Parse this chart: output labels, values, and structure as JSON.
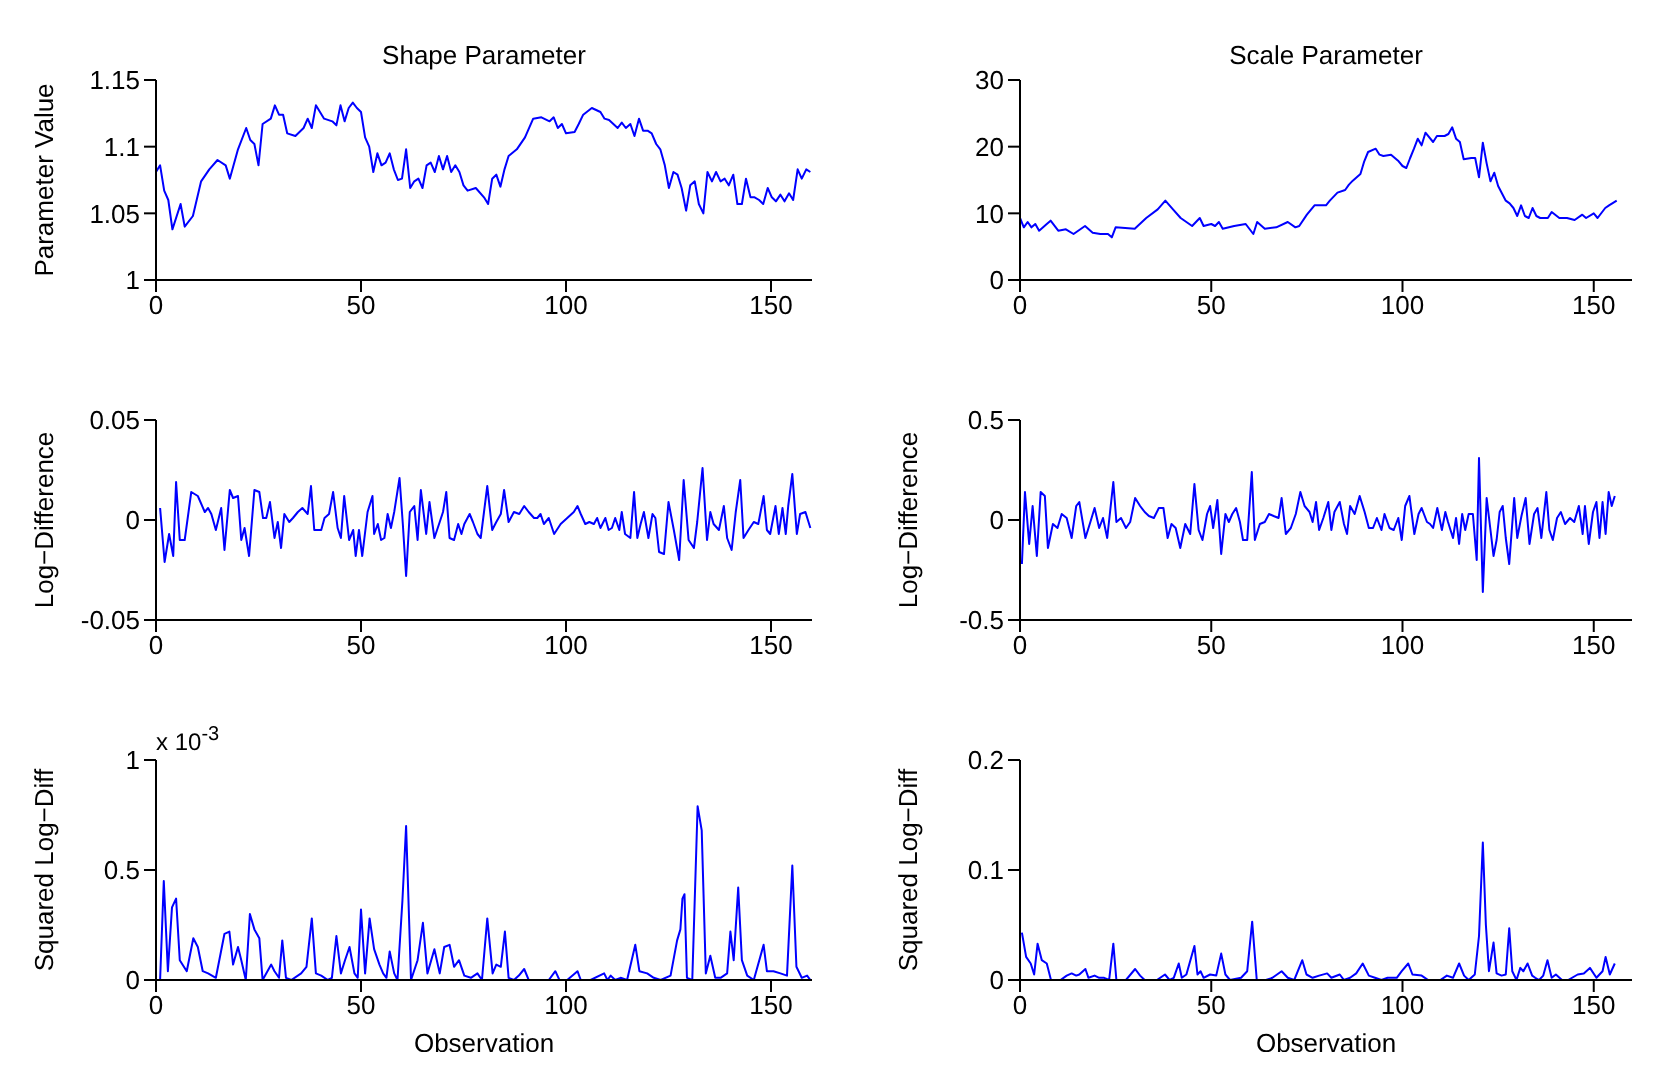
{
  "chart_data": [
    {
      "type": "line",
      "title": "Shape Parameter",
      "ylabel": "Parameter Value",
      "xlim": [
        0,
        160
      ],
      "xticks": [
        0,
        50,
        100,
        150
      ],
      "ylim": [
        1,
        1.15
      ],
      "yticks": [
        1,
        1.05,
        1.1,
        1.15
      ],
      "series": [
        {
          "color": "#0000ff",
          "x": [
            0,
            1,
            2,
            3,
            4,
            6,
            7,
            9,
            11,
            13,
            15,
            17,
            18,
            20,
            22,
            23,
            24,
            25,
            26,
            28,
            29,
            30,
            31,
            32,
            34,
            36,
            37,
            38,
            39,
            41,
            43,
            44,
            45,
            46,
            47,
            48,
            49,
            50,
            51,
            52,
            53,
            54,
            55,
            56,
            57,
            58,
            59,
            60,
            61,
            62,
            63,
            64,
            65,
            66,
            67,
            68,
            69,
            70,
            71,
            72,
            73,
            74,
            75,
            76,
            78,
            80,
            81,
            82,
            83,
            84,
            85,
            86,
            88,
            90,
            92,
            94,
            96,
            97,
            98,
            99,
            100,
            102.1,
            103.1,
            104.2,
            106.3,
            108.4,
            109.4,
            110.5,
            112.6,
            113.6,
            114.6,
            115.7,
            116.7,
            117.8,
            118.8,
            119.9,
            120.9,
            122.0,
            123.0,
            124.1,
            125.1,
            126.2,
            127.2,
            128.2,
            129.3,
            130.3,
            131.4,
            132.4,
            133.5,
            134.5,
            135.6,
            136.6,
            137.7,
            138.7,
            139.7,
            140.8,
            141.8,
            142.9,
            143.9,
            145.0,
            146.0,
            147.1,
            148.1,
            149.2,
            150.2,
            151.2,
            152.3,
            153.3,
            154.4,
            155.4,
            156.5,
            157.5,
            158.6,
            159.6
          ],
          "values": [
            1.081,
            1.086,
            1.067,
            1.06,
            1.038,
            1.057,
            1.04,
            1.048,
            1.074,
            1.083,
            1.09,
            1.086,
            1.076,
            1.098,
            1.114,
            1.105,
            1.102,
            1.086,
            1.117,
            1.121,
            1.131,
            1.124,
            1.124,
            1.11,
            1.108,
            1.114,
            1.121,
            1.114,
            1.131,
            1.121,
            1.119,
            1.116,
            1.131,
            1.119,
            1.129,
            1.133,
            1.129,
            1.126,
            1.107,
            1.1,
            1.081,
            1.095,
            1.086,
            1.088,
            1.095,
            1.083,
            1.075,
            1.076,
            1.098,
            1.069,
            1.074,
            1.076,
            1.069,
            1.086,
            1.088,
            1.081,
            1.093,
            1.083,
            1.093,
            1.081,
            1.086,
            1.081,
            1.071,
            1.067,
            1.069,
            1.062,
            1.057,
            1.076,
            1.079,
            1.07,
            1.083,
            1.093,
            1.098,
            1.107,
            1.121,
            1.122,
            1.119,
            1.122,
            1.114,
            1.117,
            1.11,
            1.111,
            1.117,
            1.124,
            1.129,
            1.126,
            1.121,
            1.12,
            1.114,
            1.118,
            1.114,
            1.117,
            1.108,
            1.121,
            1.112,
            1.112,
            1.11,
            1.102,
            1.098,
            1.086,
            1.069,
            1.081,
            1.079,
            1.069,
            1.052,
            1.071,
            1.074,
            1.057,
            1.05,
            1.081,
            1.074,
            1.081,
            1.074,
            1.076,
            1.071,
            1.079,
            1.057,
            1.057,
            1.076,
            1.062,
            1.062,
            1.06,
            1.057,
            1.069,
            1.062,
            1.059,
            1.064,
            1.059,
            1.065,
            1.06,
            1.083,
            1.076,
            1.083,
            1.081
          ]
        }
      ]
    },
    {
      "type": "line",
      "title": "Scale Parameter",
      "xlim": [
        0,
        160
      ],
      "xticks": [
        0,
        50,
        100,
        150
      ],
      "ylim": [
        0,
        30
      ],
      "yticks": [
        0,
        10,
        20,
        30
      ],
      "series": [
        {
          "color": "#0000ff",
          "x": [
            0,
            1,
            2,
            3,
            4,
            5,
            7,
            8,
            10,
            12,
            14,
            17,
            19,
            21,
            23,
            24,
            25,
            30,
            33,
            36,
            38,
            40,
            42,
            45,
            47,
            48,
            50,
            51,
            52,
            53,
            56,
            59,
            61,
            62,
            64,
            67,
            70,
            72,
            73,
            75,
            77,
            80,
            81,
            83,
            85,
            86,
            87,
            89,
            90,
            91,
            93,
            94,
            95,
            97,
            99,
            100,
            101,
            102,
            103,
            104,
            105,
            106,
            108,
            109,
            111,
            112,
            113,
            114,
            115,
            116,
            118,
            119,
            120,
            121,
            122,
            123,
            124,
            125,
            127,
            128,
            129,
            130,
            131,
            132,
            133,
            134,
            135,
            136,
            138,
            139,
            141,
            143,
            145,
            147,
            148,
            150,
            151,
            153,
            154,
            156
          ],
          "values": [
            9.3,
            7.9,
            8.7,
            7.9,
            8.4,
            7.4,
            8.4,
            8.9,
            7.4,
            7.6,
            6.9,
            8.1,
            7.1,
            6.9,
            6.9,
            6.4,
            7.9,
            7.7,
            9.3,
            10.6,
            11.9,
            10.6,
            9.3,
            8.1,
            9.3,
            8.1,
            8.4,
            8.1,
            8.7,
            7.7,
            8.1,
            8.4,
            6.9,
            8.7,
            7.7,
            7.9,
            8.7,
            7.9,
            8.1,
            9.8,
            11.2,
            11.2,
            11.9,
            13.1,
            13.5,
            14.3,
            14.9,
            15.9,
            17.8,
            19.2,
            19.7,
            18.8,
            18.6,
            18.8,
            17.8,
            17.1,
            16.8,
            18.3,
            19.7,
            21.2,
            20.2,
            22.1,
            20.7,
            21.6,
            21.6,
            21.9,
            22.9,
            21.2,
            20.7,
            18.1,
            18.3,
            18.3,
            15.4,
            20.6,
            17.5,
            14.8,
            16.1,
            14.1,
            11.9,
            11.5,
            10.8,
            9.6,
            11.2,
            9.6,
            9.3,
            10.8,
            9.6,
            9.3,
            9.3,
            10.2,
            9.3,
            9.3,
            9.0,
            9.8,
            9.3,
            10.0,
            9.3,
            10.8,
            11.2,
            11.9
          ]
        }
      ]
    },
    {
      "type": "line",
      "ylabel": "Log−Difference",
      "xlim": [
        0,
        160
      ],
      "xticks": [
        0,
        50,
        100,
        150
      ],
      "ylim": [
        -0.05,
        0.05
      ],
      "yticks": [
        -0.05,
        0,
        0.05
      ],
      "series": [
        {
          "color": "#0000ff",
          "x": [
            1.0,
            2.1,
            3.2,
            4.2,
            4.9,
            5.8,
            7.0,
            8.6,
            10.2,
            11.9,
            12.7,
            13.5,
            14.6,
            15.9,
            16.7,
            18.0,
            18.8,
            20.0,
            20.8,
            21.6,
            22.7,
            24.0,
            25.2,
            26.1,
            26.9,
            27.8,
            28.9,
            29.7,
            30.5,
            31.3,
            32.5,
            33.4,
            34.6,
            35.7,
            37.0,
            37.8,
            38.6,
            40.3,
            41.1,
            42.2,
            43.2,
            44.3,
            45.1,
            45.9,
            47.1,
            48.1,
            48.7,
            49.5,
            50.3,
            51.6,
            52.8,
            53.2,
            54.1,
            54.9,
            55.7,
            56.5,
            57.3,
            58.1,
            59.4,
            60.2,
            61.0,
            61.9,
            63.0,
            63.8,
            64.6,
            65.9,
            66.7,
            67.9,
            69.2,
            70.0,
            70.8,
            71.6,
            72.7,
            73.7,
            74.5,
            75.2,
            76.5,
            77.3,
            78.4,
            79.2,
            80.0,
            80.8,
            82.0,
            83.0,
            84.1,
            84.9,
            86.0,
            87.3,
            88.6,
            89.8,
            90.9,
            92.2,
            93.0,
            93.8,
            94.6,
            95.8,
            97.1,
            98.7,
            100.3,
            101.9,
            102.8,
            103.6,
            104.7,
            105.7,
            106.8,
            107.6,
            108.4,
            109.6,
            110.4,
            111.2,
            112.0,
            113.0,
            113.6,
            114.4,
            115.7,
            116.6,
            117.4,
            118.2,
            119.0,
            120.1,
            121.1,
            121.8,
            122.7,
            123.9,
            125.0,
            126.3,
            127.6,
            128.7,
            129.9,
            131.2,
            132.0,
            133.3,
            134.4,
            135.2,
            136.0,
            137.3,
            138.5,
            139.3,
            140.4,
            141.4,
            142.5,
            143.3,
            144.5,
            145.8,
            146.9,
            148.2,
            149.0,
            149.8,
            151.1,
            151.9,
            152.8,
            153.6,
            154.2,
            155.2,
            156.3,
            157.1,
            158.4,
            159.6
          ],
          "values": [
            0.006,
            -0.021,
            -0.007,
            -0.018,
            0.019,
            -0.01,
            -0.01,
            0.014,
            0.012,
            0.004,
            0.006,
            0.003,
            -0.005,
            0.006,
            -0.015,
            0.015,
            0.011,
            0.012,
            -0.01,
            -0.004,
            -0.018,
            0.015,
            0.014,
            0.001,
            0.001,
            0.009,
            -0.009,
            -0.001,
            -0.014,
            0.003,
            -0.001,
            0.001,
            0.004,
            0.006,
            0.003,
            0.017,
            -0.005,
            -0.005,
            0.001,
            0.003,
            0.014,
            -0.004,
            -0.009,
            0.012,
            -0.01,
            -0.005,
            -0.018,
            -0.005,
            -0.018,
            0.004,
            0.012,
            -0.007,
            -0.002,
            -0.01,
            -0.009,
            0.003,
            -0.004,
            0.004,
            0.021,
            -0.002,
            -0.028,
            0.004,
            0.007,
            -0.01,
            0.015,
            -0.007,
            0.009,
            -0.009,
            -0.001,
            0.004,
            0.014,
            -0.009,
            -0.01,
            -0.002,
            -0.007,
            -0.002,
            0.003,
            -0.001,
            -0.007,
            -0.009,
            0.004,
            0.017,
            -0.005,
            -0.001,
            0.003,
            0.015,
            -0.001,
            0.004,
            0.003,
            0.007,
            0.004,
            0.001,
            0.001,
            0.003,
            -0.002,
            0.001,
            -0.007,
            -0.002,
            0.001,
            0.004,
            0.007,
            0.003,
            -0.002,
            -0.001,
            -0.002,
            0.001,
            -0.004,
            0.001,
            -0.005,
            -0.004,
            0.001,
            -0.005,
            0.004,
            -0.007,
            -0.009,
            0.014,
            -0.009,
            -0.002,
            0.004,
            -0.009,
            0.003,
            0.001,
            -0.016,
            -0.017,
            0.009,
            -0.005,
            -0.02,
            0.02,
            -0.01,
            -0.014,
            -0.001,
            0.026,
            -0.01,
            0.004,
            -0.002,
            -0.005,
            0.007,
            -0.009,
            -0.015,
            0.004,
            0.02,
            -0.009,
            -0.005,
            -0.001,
            -0.002,
            0.012,
            -0.005,
            -0.007,
            0.007,
            -0.007,
            0.006,
            -0.007,
            0.007,
            0.023,
            -0.007,
            0.003,
            0.004,
            -0.004
          ]
        }
      ]
    },
    {
      "type": "line",
      "ylabel": "Log−Difference",
      "xlim": [
        0,
        160
      ],
      "xticks": [
        0,
        50,
        100,
        150
      ],
      "ylim": [
        -0.5,
        0.5
      ],
      "yticks": [
        -0.5,
        0,
        0.5
      ],
      "series": [
        {
          "color": "#0000ff",
          "x": [
            0.5,
            1.3,
            2.4,
            3.3,
            4.4,
            5.4,
            6.5,
            7.3,
            8.6,
            9.8,
            10.9,
            12.2,
            13.5,
            14.7,
            15.5,
            17.1,
            18.4,
            19.5,
            20.7,
            21.7,
            22.8,
            24.4,
            25.2,
            26.4,
            27.7,
            28.8,
            30.1,
            31.4,
            32.6,
            33.7,
            35.0,
            36.3,
            37.5,
            38.6,
            39.6,
            40.7,
            41.9,
            43.2,
            44.5,
            45.6,
            46.7,
            47.7,
            48.9,
            49.7,
            50.5,
            51.6,
            52.6,
            53.7,
            54.6,
            55.5,
            56.5,
            57.5,
            58.3,
            59.4,
            60.6,
            61.4,
            62.7,
            64.0,
            65.1,
            66.3,
            67.6,
            68.4,
            69.5,
            70.8,
            72.1,
            73.3,
            74.4,
            75.7,
            76.5,
            77.4,
            78.2,
            79.3,
            80.6,
            81.4,
            82.2,
            83.6,
            84.7,
            85.5,
            86.3,
            87.5,
            88.8,
            90.1,
            91.2,
            92.3,
            93.3,
            94.5,
            95.3,
            96.6,
            97.7,
            98.9,
            99.8,
            100.7,
            101.8,
            103.1,
            104.2,
            105.0,
            106.4,
            107.2,
            108.0,
            109.1,
            110.3,
            111.2,
            111.9,
            113.2,
            114.0,
            114.8,
            115.6,
            116.4,
            117.3,
            118.4,
            119.4,
            120.0,
            121.0,
            122.0,
            123.0,
            123.8,
            124.6,
            125.4,
            126.2,
            127.0,
            127.9,
            129.2,
            130.0,
            131.1,
            132.2,
            133.2,
            134.4,
            135.3,
            136.3,
            137.6,
            138.4,
            139.3,
            140.4,
            141.4,
            142.5,
            143.8,
            144.9,
            146.1,
            147.1,
            147.7,
            148.7,
            149.8,
            150.7,
            151.5,
            152.3,
            153.1,
            153.9,
            154.7,
            155.5
          ],
          "values": [
            -0.22,
            0.14,
            -0.12,
            0.07,
            -0.18,
            0.14,
            0.12,
            -0.14,
            -0.02,
            -0.04,
            0.03,
            0.01,
            -0.09,
            0.07,
            0.09,
            -0.09,
            -0.01,
            0.06,
            -0.04,
            0.01,
            -0.09,
            0.19,
            -0.01,
            0.01,
            -0.04,
            -0.01,
            0.11,
            0.07,
            0.04,
            0.02,
            0.01,
            0.06,
            0.06,
            -0.09,
            -0.02,
            -0.04,
            -0.14,
            -0.02,
            -0.07,
            0.18,
            -0.05,
            -0.1,
            0.03,
            0.07,
            -0.04,
            0.1,
            -0.17,
            0.03,
            -0.01,
            0.03,
            0.06,
            -0.01,
            -0.1,
            -0.1,
            0.24,
            -0.1,
            -0.02,
            -0.01,
            0.03,
            0.02,
            0.01,
            0.11,
            -0.07,
            -0.04,
            0.03,
            0.14,
            0.07,
            0.04,
            -0.01,
            0.09,
            -0.05,
            0.01,
            0.09,
            -0.05,
            0.04,
            0.09,
            -0.02,
            -0.07,
            0.07,
            0.03,
            0.12,
            0.04,
            -0.04,
            -0.04,
            0.01,
            -0.05,
            0.03,
            -0.04,
            -0.05,
            0.01,
            -0.1,
            0.07,
            0.12,
            -0.07,
            0.03,
            0.06,
            -0.01,
            -0.02,
            -0.04,
            0.06,
            -0.05,
            0.04,
            -0.01,
            -0.09,
            0.01,
            -0.12,
            0.03,
            -0.05,
            0.03,
            0.03,
            -0.2,
            0.31,
            -0.36,
            0.11,
            -0.05,
            -0.18,
            -0.1,
            0.04,
            0.07,
            -0.09,
            -0.22,
            0.11,
            -0.09,
            0.02,
            0.11,
            -0.12,
            0.03,
            0.06,
            -0.09,
            0.14,
            -0.05,
            -0.1,
            0.01,
            0.04,
            -0.02,
            0.01,
            -0.01,
            0.07,
            -0.07,
            0.07,
            -0.12,
            0.04,
            0.09,
            -0.09,
            0.09,
            -0.07,
            0.14,
            0.07,
            0.12
          ]
        }
      ]
    },
    {
      "type": "line",
      "ylabel": "Squared Log−Diff",
      "xlabel": "Observation",
      "annotations": [
        "x 10$^{-3}$"
      ],
      "xlim": [
        0,
        160
      ],
      "xticks": [
        0,
        50,
        100,
        150
      ],
      "ylim": [
        0,
        1
      ],
      "yticks": [
        0,
        0.5,
        1
      ],
      "series": [
        {
          "color": "#0000ff",
          "x": [
            1.0,
            1.9,
            2.9,
            3.9,
            4.9,
            5.8,
            7.5,
            9.1,
            10.2,
            11.4,
            12.7,
            14.6,
            16.7,
            17.9,
            18.8,
            20.0,
            20.8,
            21.9,
            22.9,
            24.0,
            25.2,
            26.0,
            28.1,
            28.9,
            30.0,
            30.8,
            31.7,
            33.0,
            35.4,
            36.7,
            38.0,
            39.0,
            40.3,
            41.9,
            42.9,
            44.0,
            45.1,
            46.1,
            47.2,
            48.4,
            49.2,
            50.0,
            51.0,
            52.1,
            53.2,
            54.5,
            55.4,
            56.2,
            57.0,
            58.1,
            58.9,
            60.1,
            61.0,
            62.2,
            63.8,
            65.1,
            66.2,
            67.9,
            69.2,
            70.3,
            71.6,
            72.7,
            73.9,
            75.2,
            76.8,
            78.4,
            79.5,
            80.8,
            82.1,
            83.0,
            84.1,
            85.1,
            86.0,
            87.3,
            88.5,
            89.8,
            90.9,
            93.8,
            95.8,
            97.4,
            98.4,
            100.3,
            102.8,
            103.6,
            106.0,
            109.3,
            110.1,
            110.9,
            112.0,
            113.3,
            114.9,
            116.9,
            117.9,
            119.8,
            121.4,
            123.1,
            125.5,
            127.1,
            127.9,
            128.4,
            128.9,
            129.5,
            130.8,
            132.1,
            133.1,
            134.1,
            135.2,
            136.4,
            137.7,
            139.3,
            140.1,
            140.9,
            142.0,
            142.9,
            144.2,
            145.8,
            148.2,
            149.0,
            150.6,
            152.3,
            153.9,
            155.2,
            156.2,
            157.5,
            158.8,
            159.6
          ],
          "values": [
            0,
            0.45,
            0.04,
            0.33,
            0.37,
            0.09,
            0.04,
            0.19,
            0.15,
            0.04,
            0.03,
            0.01,
            0.21,
            0.22,
            0.07,
            0.15,
            0.09,
            0,
            0.3,
            0.23,
            0.19,
            0,
            0.07,
            0.04,
            0.01,
            0.18,
            0.01,
            0,
            0.03,
            0.06,
            0.28,
            0.03,
            0.02,
            0,
            0.01,
            0.2,
            0.03,
            0.09,
            0.15,
            0.03,
            0.01,
            0.32,
            0.03,
            0.28,
            0.14,
            0.07,
            0.03,
            0.01,
            0.13,
            0.03,
            0,
            0.36,
            0.7,
            0,
            0.09,
            0.26,
            0.03,
            0.14,
            0.03,
            0.15,
            0.16,
            0.06,
            0.09,
            0.02,
            0.01,
            0.03,
            0,
            0.28,
            0.03,
            0.07,
            0.06,
            0.22,
            0.01,
            0,
            0.02,
            0.05,
            0,
            0,
            0,
            0.04,
            0,
            0,
            0.04,
            0,
            0,
            0.03,
            0,
            0.02,
            0,
            0.01,
            0,
            0.16,
            0.04,
            0.03,
            0.01,
            0,
            0.02,
            0.18,
            0.23,
            0.37,
            0.39,
            0.01,
            0,
            0.79,
            0.68,
            0.03,
            0.11,
            0.01,
            0.01,
            0.03,
            0.22,
            0.09,
            0.42,
            0.09,
            0.02,
            0,
            0.16,
            0.04,
            0.04,
            0.03,
            0.02,
            0.52,
            0.06,
            0.01,
            0.02,
            0
          ]
        }
      ]
    },
    {
      "type": "line",
      "ylabel": "Squared Log−Diff",
      "xlabel": "Observation",
      "xlim": [
        0,
        160
      ],
      "xticks": [
        0,
        50,
        100,
        150
      ],
      "ylim": [
        0,
        0.2
      ],
      "yticks": [
        0,
        0.1,
        0.2
      ],
      "series": [
        {
          "color": "#0000ff",
          "x": [
            0.5,
            1.6,
            2.8,
            3.7,
            4.6,
            5.7,
            7.0,
            8.1,
            10.6,
            12.2,
            13.5,
            14.7,
            15.5,
            17.1,
            17.9,
            19.5,
            20.7,
            22.0,
            23.3,
            24.4,
            25.2,
            27.7,
            30.1,
            31.4,
            32.6,
            35.8,
            37.9,
            39.1,
            40.2,
            41.5,
            42.3,
            43.5,
            45.6,
            46.4,
            47.2,
            48.0,
            49.7,
            51.3,
            52.6,
            53.7,
            54.9,
            57.8,
            59.4,
            60.7,
            61.9,
            64.3,
            66.0,
            68.4,
            70.0,
            71.7,
            73.8,
            74.9,
            76.5,
            78.2,
            80.3,
            81.4,
            83.6,
            84.7,
            86.3,
            87.9,
            89.6,
            91.2,
            92.8,
            94.5,
            96.1,
            98.5,
            99.8,
            101.5,
            102.6,
            105.0,
            106.7,
            109.9,
            111.6,
            113.2,
            114.8,
            116.1,
            117.3,
            118.9,
            120.0,
            121.0,
            121.8,
            122.6,
            123.8,
            124.6,
            125.9,
            127.0,
            127.9,
            128.7,
            129.8,
            130.8,
            131.6,
            132.7,
            133.9,
            134.7,
            135.7,
            136.8,
            137.9,
            139.0,
            140.1,
            141.7,
            143.3,
            145.8,
            147.4,
            149.0,
            150.7,
            152.3,
            153.1,
            154.2,
            155.5
          ],
          "values": [
            0.043,
            0.021,
            0.015,
            0.005,
            0.033,
            0.018,
            0.015,
            0,
            0,
            0.004,
            0.006,
            0.004,
            0.005,
            0.01,
            0.002,
            0.004,
            0.002,
            0.002,
            0,
            0.033,
            0,
            0,
            0.01,
            0.004,
            0,
            0,
            0.005,
            0,
            0.002,
            0.015,
            0.002,
            0.005,
            0.031,
            0.005,
            0.008,
            0.002,
            0.005,
            0.004,
            0.024,
            0.005,
            0,
            0.002,
            0.008,
            0.053,
            0,
            0,
            0.002,
            0.008,
            0.002,
            0,
            0.018,
            0.005,
            0.002,
            0.004,
            0.006,
            0.002,
            0.005,
            0,
            0.002,
            0.006,
            0.015,
            0.004,
            0.002,
            0,
            0.002,
            0.002,
            0.008,
            0.015,
            0.005,
            0.004,
            0,
            0,
            0.004,
            0.002,
            0.015,
            0.004,
            0,
            0.005,
            0.04,
            0.125,
            0.05,
            0.008,
            0.034,
            0.006,
            0.004,
            0.005,
            0.047,
            0.008,
            0,
            0.011,
            0.008,
            0.015,
            0.004,
            0.002,
            0,
            0.004,
            0.018,
            0.002,
            0.005,
            0,
            0,
            0.005,
            0.006,
            0.011,
            0.002,
            0.008,
            0.021,
            0.005,
            0.015
          ]
        }
      ]
    }
  ]
}
